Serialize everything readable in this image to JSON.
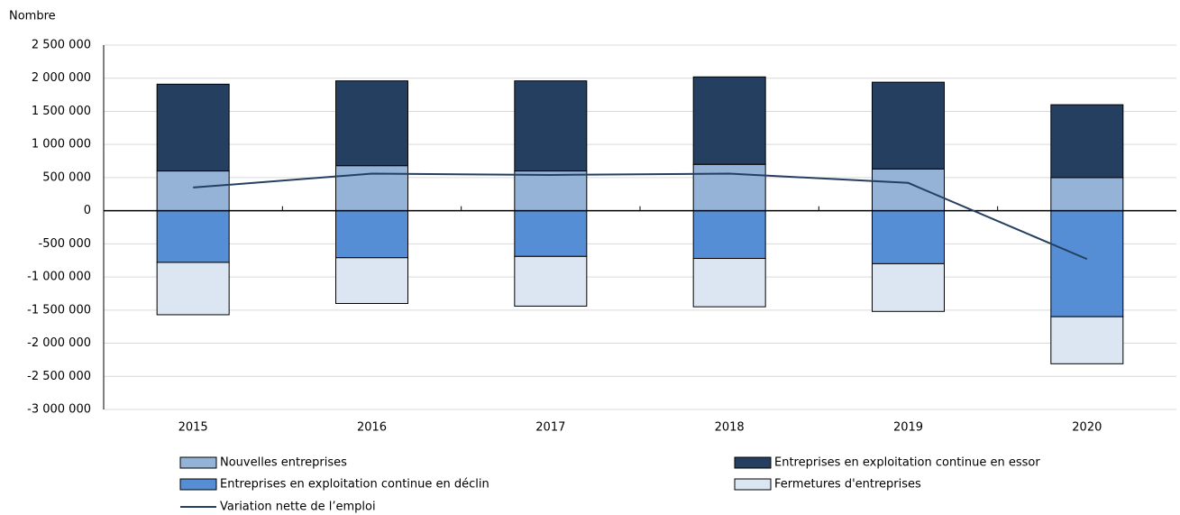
{
  "chart_data": {
    "type": "bar",
    "y_label": "Nombre",
    "categories": [
      "2015",
      "2016",
      "2017",
      "2018",
      "2019",
      "2020"
    ],
    "ylim": [
      -3000000,
      2500000
    ],
    "yticks": [
      {
        "value": -3000000,
        "label": "-3 000 000"
      },
      {
        "value": -2500000,
        "label": "-2 500 000"
      },
      {
        "value": -2000000,
        "label": "-2 000 000"
      },
      {
        "value": -1500000,
        "label": "-1 500 000"
      },
      {
        "value": -1000000,
        "label": "-1 000 000"
      },
      {
        "value": -500000,
        "label": "-500 000"
      },
      0,
      {
        "value": 500000,
        "label": "500 000"
      },
      {
        "value": 1000000,
        "label": "1 000 000"
      },
      {
        "value": 1500000,
        "label": "1 500 000"
      },
      {
        "value": 2000000,
        "label": "2 000 000"
      },
      {
        "value": 2500000,
        "label": "2 500 000"
      }
    ],
    "grid": true,
    "series": [
      {
        "name": "Nouvelles entreprises",
        "type": "bar",
        "color": "#95b3d7",
        "values": [
          600000,
          680000,
          600000,
          700000,
          630000,
          500000
        ]
      },
      {
        "name": "Entreprises en exploitation continue en essor",
        "type": "bar",
        "color": "#243f60",
        "values": [
          1310000,
          1280000,
          1360000,
          1320000,
          1310000,
          1100000
        ]
      },
      {
        "name": "Entreprises en exploitation continue en déclin",
        "type": "bar",
        "color": "#558ed5",
        "values": [
          -780000,
          -710000,
          -690000,
          -720000,
          -800000,
          -1600000
        ]
      },
      {
        "name": "Fermetures d'entreprises",
        "type": "bar",
        "color": "#dce6f2",
        "values": [
          -790000,
          -690000,
          -750000,
          -730000,
          -720000,
          -710000
        ]
      },
      {
        "name": "Variation nette de l’emploi",
        "type": "line",
        "color": "#243f60",
        "values": [
          350000,
          560000,
          540000,
          560000,
          420000,
          -730000
        ]
      }
    ]
  }
}
